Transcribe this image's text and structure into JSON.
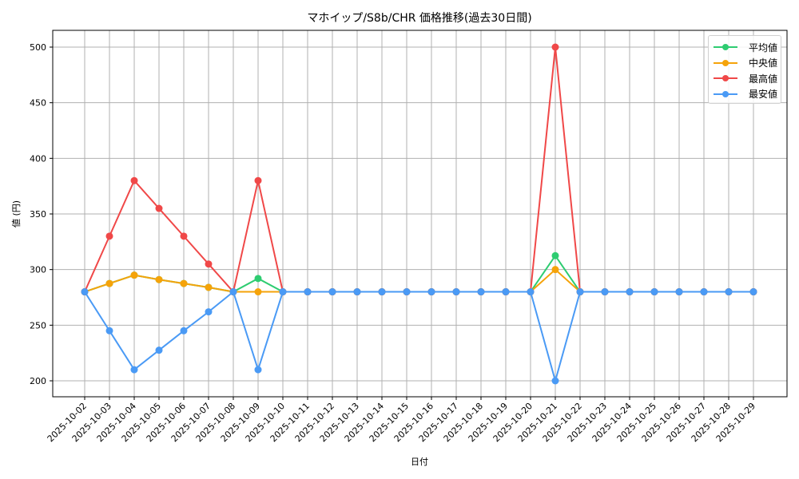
{
  "chart_data": {
    "type": "line",
    "title": "マホイップ/S8b/CHR 価格推移(過去30日間)",
    "xlabel": "日付",
    "ylabel": "値 (円)",
    "ylim": [
      185,
      515
    ],
    "yticks": [
      200,
      250,
      300,
      350,
      400,
      450,
      500
    ],
    "grid": true,
    "legend_position": "upper right",
    "categories": [
      "2025-10-02",
      "2025-10-03",
      "2025-10-04",
      "2025-10-05",
      "2025-10-06",
      "2025-10-07",
      "2025-10-08",
      "2025-10-09",
      "2025-10-10",
      "2025-10-11",
      "2025-10-12",
      "2025-10-13",
      "2025-10-14",
      "2025-10-15",
      "2025-10-16",
      "2025-10-17",
      "2025-10-18",
      "2025-10-19",
      "2025-10-20",
      "2025-10-21",
      "2025-10-22",
      "2025-10-23",
      "2025-10-24",
      "2025-10-25",
      "2025-10-26",
      "2025-10-27",
      "2025-10-28",
      "2025-10-29"
    ],
    "series": [
      {
        "name": "平均値",
        "color": "#2ecc71",
        "values": [
          280,
          287.5,
          295,
          291,
          287.5,
          284,
          280,
          292,
          280,
          280,
          280,
          280,
          280,
          280,
          280,
          280,
          280,
          280,
          280,
          312.5,
          280,
          280,
          280,
          280,
          280,
          280,
          280,
          280
        ]
      },
      {
        "name": "中央値",
        "color": "#f5a30a",
        "values": [
          280,
          287.5,
          295,
          291,
          287.5,
          284,
          280,
          280,
          280,
          280,
          280,
          280,
          280,
          280,
          280,
          280,
          280,
          280,
          280,
          300,
          280,
          280,
          280,
          280,
          280,
          280,
          280,
          280
        ]
      },
      {
        "name": "最高値",
        "color": "#f04848",
        "values": [
          280,
          330,
          380,
          355,
          330,
          305,
          280,
          380,
          280,
          280,
          280,
          280,
          280,
          280,
          280,
          280,
          280,
          280,
          280,
          500,
          280,
          280,
          280,
          280,
          280,
          280,
          280,
          280
        ]
      },
      {
        "name": "最安値",
        "color": "#4a9af5",
        "values": [
          280,
          245,
          210,
          227.5,
          245,
          262,
          280,
          210,
          280,
          280,
          280,
          280,
          280,
          280,
          280,
          280,
          280,
          280,
          280,
          200,
          280,
          280,
          280,
          280,
          280,
          280,
          280,
          280
        ]
      }
    ]
  }
}
